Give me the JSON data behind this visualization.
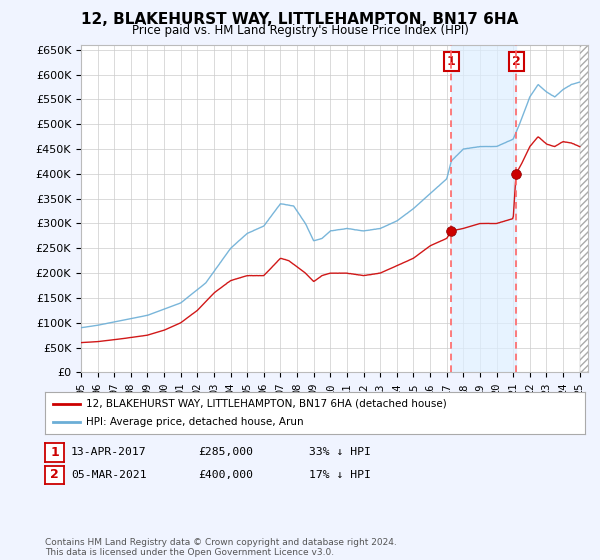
{
  "title": "12, BLAKEHURST WAY, LITTLEHAMPTON, BN17 6HA",
  "subtitle": "Price paid vs. HM Land Registry's House Price Index (HPI)",
  "legend_line1": "12, BLAKEHURST WAY, LITTLEHAMPTON, BN17 6HA (detached house)",
  "legend_line2": "HPI: Average price, detached house, Arun",
  "transaction1_date": "13-APR-2017",
  "transaction1_price": "£285,000",
  "transaction1_hpi": "33% ↓ HPI",
  "transaction2_date": "05-MAR-2021",
  "transaction2_price": "£400,000",
  "transaction2_hpi": "17% ↓ HPI",
  "footer": "Contains HM Land Registry data © Crown copyright and database right 2024.\nThis data is licensed under the Open Government Licence v3.0.",
  "hpi_color": "#6baed6",
  "price_color": "#cc0000",
  "marker1_x": 2017.28,
  "marker1_y": 285000,
  "marker2_x": 2021.17,
  "marker2_y": 400000,
  "vline1_x": 2017.28,
  "vline2_x": 2021.17,
  "shade_color": "#ddeeff",
  "hatch_start": 2025.0,
  "ylim": [
    0,
    660000
  ],
  "xlim_start": 1995.0,
  "xlim_end": 2025.5,
  "background_color": "#f0f4ff",
  "plot_background": "#ffffff",
  "grid_color": "#cccccc"
}
